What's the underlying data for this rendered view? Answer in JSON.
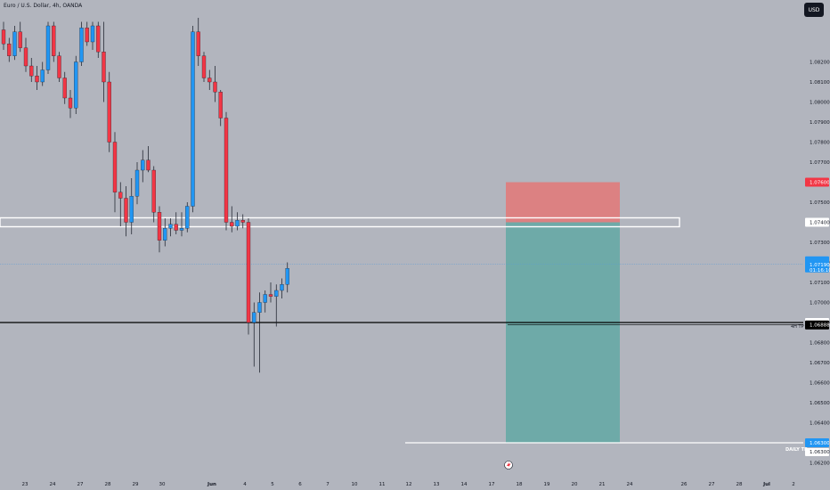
{
  "symbol_info": "Euro / U.S. Dollar, 4h, OANDA",
  "currency": "USD",
  "colors": {
    "background": "#b2b5be",
    "up": "#2196f3",
    "down": "#f23645",
    "tp_zone": "#66a8a5",
    "sl_zone": "#e07b7b",
    "axis_text": "#131722"
  },
  "chart_data": {
    "type": "candlestick",
    "title": "",
    "xlabel": "",
    "ylabel": "",
    "ylim": [
      1.0622,
      1.0838
    ],
    "y_ticks": [
      "1.08200",
      "1.08100",
      "1.08000",
      "1.07900",
      "1.07800",
      "1.07700",
      "1.07600",
      "1.07500",
      "1.07400",
      "1.07300",
      "1.07200",
      "1.07100",
      "1.07000",
      "1.06900",
      "1.06800",
      "1.06700",
      "1.06600",
      "1.06500",
      "1.06400",
      "1.06300",
      "1.06200"
    ],
    "x_ticks": [
      "23",
      "24",
      "27",
      "28",
      "29",
      "30",
      "Jun",
      "4",
      "5",
      "6",
      "7",
      "10",
      "11",
      "12",
      "13",
      "14",
      "17",
      "18",
      "19",
      "20",
      "21",
      "24",
      "26",
      "27",
      "28",
      "Jul",
      "2"
    ],
    "candles": [
      {
        "o": 1.0836,
        "h": 1.084,
        "l": 1.0826,
        "c": 1.0829
      },
      {
        "o": 1.0829,
        "h": 1.0832,
        "l": 1.082,
        "c": 1.0823
      },
      {
        "o": 1.0823,
        "h": 1.0838,
        "l": 1.0821,
        "c": 1.0835
      },
      {
        "o": 1.0835,
        "h": 1.084,
        "l": 1.0825,
        "c": 1.0827
      },
      {
        "o": 1.0827,
        "h": 1.0832,
        "l": 1.0815,
        "c": 1.0818
      },
      {
        "o": 1.0818,
        "h": 1.0822,
        "l": 1.081,
        "c": 1.0813
      },
      {
        "o": 1.0813,
        "h": 1.0818,
        "l": 1.0806,
        "c": 1.081
      },
      {
        "o": 1.081,
        "h": 1.082,
        "l": 1.0808,
        "c": 1.0816
      },
      {
        "o": 1.0816,
        "h": 1.084,
        "l": 1.0814,
        "c": 1.0838
      },
      {
        "o": 1.0838,
        "h": 1.084,
        "l": 1.082,
        "c": 1.0823
      },
      {
        "o": 1.0823,
        "h": 1.0825,
        "l": 1.081,
        "c": 1.0812
      },
      {
        "o": 1.0812,
        "h": 1.0815,
        "l": 1.0799,
        "c": 1.0802
      },
      {
        "o": 1.0802,
        "h": 1.0806,
        "l": 1.0792,
        "c": 1.0797
      },
      {
        "o": 1.0797,
        "h": 1.0823,
        "l": 1.0794,
        "c": 1.082
      },
      {
        "o": 1.082,
        "h": 1.084,
        "l": 1.0818,
        "c": 1.0837
      },
      {
        "o": 1.0837,
        "h": 1.084,
        "l": 1.0828,
        "c": 1.083
      },
      {
        "o": 1.083,
        "h": 1.084,
        "l": 1.0826,
        "c": 1.0838
      },
      {
        "o": 1.0838,
        "h": 1.084,
        "l": 1.0822,
        "c": 1.0825
      },
      {
        "o": 1.0825,
        "h": 1.084,
        "l": 1.08,
        "c": 1.081
      },
      {
        "o": 1.081,
        "h": 1.0815,
        "l": 1.0775,
        "c": 1.078
      },
      {
        "o": 1.078,
        "h": 1.0785,
        "l": 1.0745,
        "c": 1.0755
      },
      {
        "o": 1.0755,
        "h": 1.076,
        "l": 1.0738,
        "c": 1.0752
      },
      {
        "o": 1.0752,
        "h": 1.0758,
        "l": 1.0733,
        "c": 1.074
      },
      {
        "o": 1.074,
        "h": 1.0762,
        "l": 1.0734,
        "c": 1.0753
      },
      {
        "o": 1.0753,
        "h": 1.077,
        "l": 1.0749,
        "c": 1.0766
      },
      {
        "o": 1.0766,
        "h": 1.0776,
        "l": 1.076,
        "c": 1.0771
      },
      {
        "o": 1.0771,
        "h": 1.0778,
        "l": 1.0765,
        "c": 1.0766
      },
      {
        "o": 1.0766,
        "h": 1.0768,
        "l": 1.074,
        "c": 1.0745
      },
      {
        "o": 1.0745,
        "h": 1.0748,
        "l": 1.0725,
        "c": 1.0731
      },
      {
        "o": 1.0731,
        "h": 1.0742,
        "l": 1.0728,
        "c": 1.0737
      },
      {
        "o": 1.0737,
        "h": 1.0742,
        "l": 1.0733,
        "c": 1.0739
      },
      {
        "o": 1.0739,
        "h": 1.0745,
        "l": 1.0734,
        "c": 1.0736
      },
      {
        "o": 1.0736,
        "h": 1.0745,
        "l": 1.0733,
        "c": 1.0737
      },
      {
        "o": 1.0737,
        "h": 1.075,
        "l": 1.0735,
        "c": 1.0748
      },
      {
        "o": 1.0748,
        "h": 1.0838,
        "l": 1.0745,
        "c": 1.0835
      },
      {
        "o": 1.0835,
        "h": 1.0842,
        "l": 1.0818,
        "c": 1.0823
      },
      {
        "o": 1.0823,
        "h": 1.0825,
        "l": 1.081,
        "c": 1.0812
      },
      {
        "o": 1.0812,
        "h": 1.0816,
        "l": 1.0806,
        "c": 1.081
      },
      {
        "o": 1.081,
        "h": 1.0818,
        "l": 1.08,
        "c": 1.0805
      },
      {
        "o": 1.0805,
        "h": 1.0806,
        "l": 1.0788,
        "c": 1.0792
      },
      {
        "o": 1.0792,
        "h": 1.0795,
        "l": 1.0736,
        "c": 1.074
      },
      {
        "o": 1.074,
        "h": 1.0748,
        "l": 1.0735,
        "c": 1.0738
      },
      {
        "o": 1.0738,
        "h": 1.0745,
        "l": 1.0736,
        "c": 1.0741
      },
      {
        "o": 1.0741,
        "h": 1.0744,
        "l": 1.0737,
        "c": 1.074
      },
      {
        "o": 1.074,
        "h": 1.0742,
        "l": 1.0684,
        "c": 1.069
      },
      {
        "o": 1.069,
        "h": 1.07,
        "l": 1.0668,
        "c": 1.0695
      },
      {
        "o": 1.0695,
        "h": 1.0705,
        "l": 1.0665,
        "c": 1.07
      },
      {
        "o": 1.07,
        "h": 1.0706,
        "l": 1.0695,
        "c": 1.0704
      },
      {
        "o": 1.0704,
        "h": 1.071,
        "l": 1.07,
        "c": 1.0703
      },
      {
        "o": 1.0703,
        "h": 1.0709,
        "l": 1.0688,
        "c": 1.0706
      },
      {
        "o": 1.0706,
        "h": 1.0712,
        "l": 1.0702,
        "c": 1.0709
      },
      {
        "o": 1.0709,
        "h": 1.072,
        "l": 1.0705,
        "c": 1.0717
      }
    ],
    "current_price": 1.0719,
    "countdown": "01:16:10",
    "zone_stop": 1.076,
    "zone_entry": 1.074,
    "zone_target": 1.063,
    "support_line": 1.069,
    "level_bars_price": 1.06888,
    "labels": {
      "stop": "1.07600",
      "entry": "1.07400",
      "current": "1.07190",
      "support": "1.06900",
      "tp_4h_price": "1.06888",
      "tp_daily_price": "1.06300",
      "tp_daily_alt": "1.06300",
      "tp_4h_name": "4H TP",
      "tp_daily_name": "DAILY TP"
    }
  }
}
